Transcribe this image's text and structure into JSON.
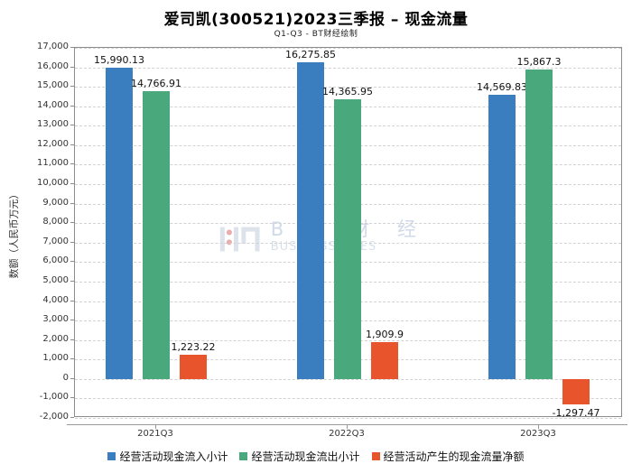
{
  "title": "爱司凯(300521)2023三季报 – 现金流量",
  "subtitle": "Q1-Q3 - BT财经绘制",
  "watermark": {
    "line1": "B T 财 经",
    "line2": "BUSINESSTIMES"
  },
  "colors": {
    "inflow_blue": "#3b7ec0",
    "outflow_green": "#4aa97c",
    "net_orange": "#e8542b",
    "plot_border": "#8c8c8c",
    "gridline": "#d2d2d2",
    "watermark_blue": "#aabdd6",
    "watermark_red": "#d96a6a"
  },
  "chart_data": {
    "type": "bar",
    "title": "爱司凯(300521)2023三季报 – 现金流量",
    "subtitle": "Q1-Q3 - BT财经绘制",
    "categories": [
      "2021Q3",
      "2022Q3",
      "2023Q3"
    ],
    "series": [
      {
        "name": "经营活动现金流入小计",
        "color": "#3b7ec0",
        "values": [
          15990.13,
          16275.85,
          14569.83
        ],
        "labels": [
          "15,990.13",
          "16,275.85",
          "14,569.83"
        ]
      },
      {
        "name": "经营活动现金流出小计",
        "color": "#4aa97c",
        "values": [
          14766.91,
          14365.95,
          15867.3
        ],
        "labels": [
          "14,766.91",
          "14,365.95",
          "15,867.3"
        ]
      },
      {
        "name": "经营活动产生的现金流量净额",
        "color": "#e8542b",
        "values": [
          1223.22,
          1909.9,
          -1297.47
        ],
        "labels": [
          "1,223.22",
          "1,909.9",
          "-1,297.47"
        ]
      }
    ],
    "xlabel": "",
    "ylabel": "数额（人民币万元）",
    "ylim": [
      -2000,
      17000
    ],
    "y_tick_step": 1000,
    "y_ticks": [
      "17,000",
      "16,000",
      "15,000",
      "14,000",
      "13,000",
      "12,000",
      "11,000",
      "10,000",
      "9,000",
      "8,000",
      "7,000",
      "6,000",
      "5,000",
      "4,000",
      "3,000",
      "2,000",
      "1,000",
      "0",
      "-1,000",
      "-2,000"
    ],
    "grid": true,
    "legend_position": "bottom"
  }
}
